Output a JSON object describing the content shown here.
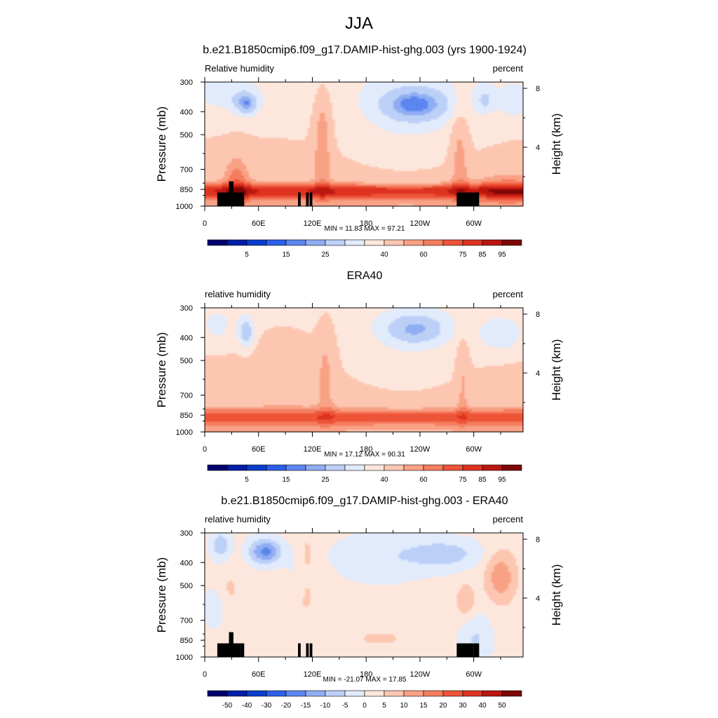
{
  "page_title": "JJA",
  "colorbars": {
    "rh": {
      "colors": [
        "#03006e",
        "#001ea5",
        "#0a3ecc",
        "#2c5ee8",
        "#5b86ef",
        "#8fadf3",
        "#bcd0f7",
        "#e1ebfc",
        "#fde7dc",
        "#fcc6b1",
        "#f9a185",
        "#f57d5f",
        "#ee5438",
        "#dd3320",
        "#bb1711",
        "#7e0606"
      ],
      "labels": [
        "5",
        "15",
        "25",
        "40",
        "60",
        "75",
        "85",
        "95"
      ]
    },
    "diff": {
      "colors": [
        "#03006e",
        "#001ea5",
        "#0a3ecc",
        "#2c5ee8",
        "#5b86ef",
        "#8fadf3",
        "#bcd0f7",
        "#e1ebfc",
        "#fde7dc",
        "#fcc6b1",
        "#f9a185",
        "#f57d5f",
        "#ee5438",
        "#dd3320",
        "#bb1711",
        "#7e0606"
      ],
      "labels": [
        "-50",
        "-40",
        "-30",
        "-20",
        "-15",
        "-10",
        "-5",
        "0",
        "5",
        "10",
        "15",
        "20",
        "30",
        "40",
        "50"
      ]
    }
  },
  "chart_data": [
    {
      "type": "heatmap",
      "title": "b.e21.B1850cmip6.f09_g17.DAMIP-hist-ghg.003 (yrs 1900-1924)",
      "variable_label": "Relative humidity",
      "units_label": "percent",
      "xlabel": "",
      "ylabel": "Pressure (mb)",
      "ylabel_right": "Height (km)",
      "x_ticks": [
        "0",
        "60E",
        "120E",
        "180",
        "120W",
        "60W"
      ],
      "x_tick_longitudes": [
        0,
        60,
        120,
        180,
        240,
        300
      ],
      "xlim": [
        0,
        355
      ],
      "y_ticks": [
        "300",
        "400",
        "500",
        "700",
        "850",
        "1000"
      ],
      "y_tick_pressures": [
        300,
        400,
        500,
        700,
        850,
        1000
      ],
      "ylim": [
        1000,
        300
      ],
      "height_ticks": [
        "8",
        "4"
      ],
      "height_tick_km": [
        8,
        4
      ],
      "min_label": "MIN =  11.83  MAX =  97.21",
      "min": 11.83,
      "max": 97.21,
      "colorbar": "rh",
      "topography": true
    },
    {
      "type": "heatmap",
      "title": "ERA40",
      "variable_label": "relative humidity",
      "units_label": "percent",
      "xlabel": "",
      "ylabel": "Pressure (mb)",
      "ylabel_right": "Height (km)",
      "x_ticks": [
        "0",
        "60E",
        "120E",
        "180",
        "120W",
        "60W"
      ],
      "x_tick_longitudes": [
        0,
        60,
        120,
        180,
        240,
        300
      ],
      "xlim": [
        0,
        355
      ],
      "y_ticks": [
        "300",
        "400",
        "500",
        "700",
        "850",
        "1000"
      ],
      "y_tick_pressures": [
        300,
        400,
        500,
        700,
        850,
        1000
      ],
      "ylim": [
        1000,
        300
      ],
      "height_ticks": [
        "8",
        "4"
      ],
      "height_tick_km": [
        8,
        4
      ],
      "min_label": "MIN =  17.12  MAX =  90.31",
      "min": 17.12,
      "max": 90.31,
      "colorbar": "rh",
      "topography": false
    },
    {
      "type": "heatmap",
      "title": "b.e21.B1850cmip6.f09_g17.DAMIP-hist-ghg.003 - ERA40",
      "variable_label": "relative humidity",
      "units_label": "percent",
      "xlabel": "",
      "ylabel": "Pressure (mb)",
      "ylabel_right": "Height (km)",
      "x_ticks": [
        "0",
        "60E",
        "120E",
        "180",
        "120W",
        "60W"
      ],
      "x_tick_longitudes": [
        0,
        60,
        120,
        180,
        240,
        300
      ],
      "xlim": [
        0,
        355
      ],
      "y_ticks": [
        "300",
        "400",
        "500",
        "700",
        "850",
        "1000"
      ],
      "y_tick_pressures": [
        300,
        400,
        500,
        700,
        850,
        1000
      ],
      "ylim": [
        1000,
        300
      ],
      "height_ticks": [
        "8",
        "4"
      ],
      "height_tick_km": [
        8,
        4
      ],
      "min_label": "MIN = -21.07  MAX =  17.85",
      "min": -21.07,
      "max": 17.85,
      "colorbar": "diff",
      "topography": true
    }
  ]
}
